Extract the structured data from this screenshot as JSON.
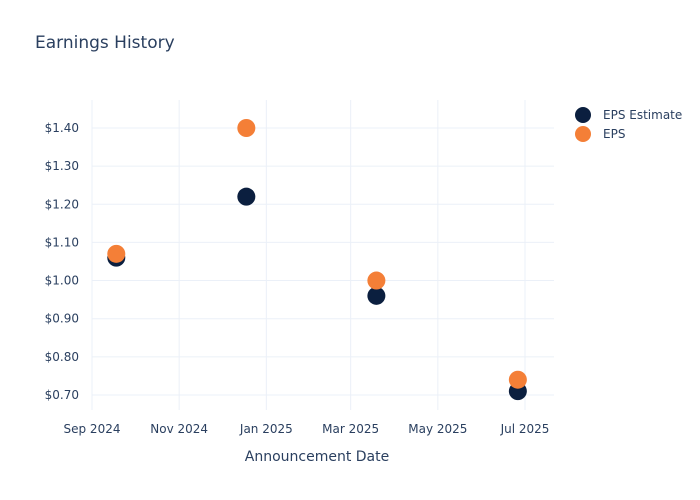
{
  "title": "Earnings History",
  "colors": {
    "estimate": "#0b1f3f",
    "actual": "#f47f37",
    "grid": "#ebf0f8",
    "text": "#2a3f5f"
  },
  "legend": [
    {
      "label": "EPS Estimate",
      "color": "#0b1f3f"
    },
    {
      "label": "EPS",
      "color": "#f47f37"
    }
  ],
  "x_axis": {
    "title": "Announcement Date",
    "ticks": [
      "Sep 2024",
      "Nov 2024",
      "Jan 2025",
      "Mar 2025",
      "May 2025",
      "Jul 2025"
    ]
  },
  "y_axis": {
    "ticks": [
      "$1.40",
      "$1.30",
      "$1.20",
      "$1.10",
      "$1.00",
      "$0.90",
      "$0.80",
      "$0.70"
    ]
  },
  "chart_data": {
    "type": "scatter",
    "title": "Earnings History",
    "xlabel": "Announcement Date",
    "ylabel": "",
    "x": [
      "2024-09-18",
      "2024-12-18",
      "2025-03-19",
      "2025-06-26"
    ],
    "series": [
      {
        "name": "EPS Estimate",
        "color": "#0b1f3f",
        "values": [
          1.06,
          1.22,
          0.96,
          0.71
        ]
      },
      {
        "name": "EPS",
        "color": "#f47f37",
        "values": [
          1.07,
          1.4,
          1.0,
          0.74
        ]
      }
    ],
    "x_tick_labels": [
      "Sep 2024",
      "Nov 2024",
      "Jan 2025",
      "Mar 2025",
      "May 2025",
      "Jul 2025"
    ],
    "y_tick_labels": [
      "$0.70",
      "$0.80",
      "$0.90",
      "$1.00",
      "$1.10",
      "$1.20",
      "$1.30",
      "$1.40"
    ],
    "ylim": [
      0.65,
      1.47
    ],
    "grid": true,
    "legend_position": "right-top"
  }
}
